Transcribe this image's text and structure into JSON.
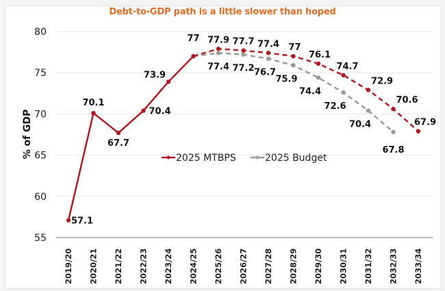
{
  "chart_data": {
    "type": "line",
    "title": "Debt-to-GDP path is a little slower than hoped",
    "xlabel": "",
    "ylabel": "% of GDP",
    "ylim": [
      55,
      80
    ],
    "yticks": [
      55,
      60,
      65,
      70,
      75,
      80
    ],
    "grid": true,
    "legend_position": "center",
    "categories": [
      "2019/20",
      "2020/21",
      "2021/22",
      "2022/23",
      "2023/24",
      "2024/25",
      "2025/26",
      "2026/27",
      "2027/28",
      "2028/29",
      "2029/30",
      "2030/31",
      "2031/32",
      "2032/33",
      "2033/34"
    ],
    "series": [
      {
        "name": "2025 MTBPS",
        "color": "#b01c24",
        "solid_until": "2024/25",
        "values": [
          57.1,
          70.1,
          67.7,
          70.4,
          73.9,
          77,
          77.9,
          77.7,
          77.4,
          77,
          76.1,
          74.7,
          72.9,
          70.6,
          67.9
        ],
        "labels": [
          "57.1",
          "70.1",
          "67.7",
          "70.4",
          "73.9",
          "77",
          "77.9",
          "77.7",
          "77.4",
          "77",
          "76.1",
          "74.7",
          "72.9",
          "70.6",
          "67.9"
        ]
      },
      {
        "name": "2025 Budget",
        "color": "#9a9a9a",
        "values": [
          null,
          null,
          null,
          null,
          null,
          77,
          77.4,
          77.2,
          76.7,
          75.9,
          74.4,
          72.6,
          70.4,
          67.8,
          null
        ],
        "labels": [
          null,
          null,
          null,
          null,
          null,
          null,
          "77.4",
          "77.2",
          "76.7",
          "75.9",
          "74.4",
          "72.6",
          "70.4",
          "67.8",
          null
        ]
      }
    ]
  }
}
